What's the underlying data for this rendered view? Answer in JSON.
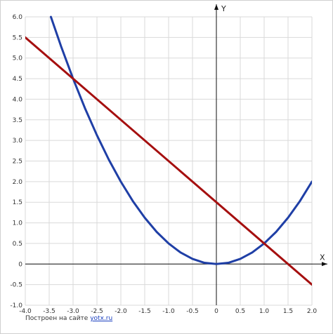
{
  "footer": {
    "text": "Построен на сайте",
    "link": "yotx.ru"
  },
  "chart_data": {
    "type": "line",
    "xlabel": "X",
    "ylabel": "Y",
    "xlim": [
      -4.0,
      2.0
    ],
    "ylim": [
      -1.0,
      6.0
    ],
    "grid": true,
    "x_ticks": [
      "-4.0",
      "-3.5",
      "-3.0",
      "-2.5",
      "-2.0",
      "-1.5",
      "-1.0",
      "-0.5",
      "0",
      "0.5",
      "1.0",
      "1.5",
      "2.0"
    ],
    "y_ticks": [
      "-1.0",
      "-0.5",
      "0",
      "0.5",
      "1.0",
      "1.5",
      "2.0",
      "2.5",
      "3.0",
      "3.5",
      "4.0",
      "4.5",
      "5.0",
      "5.5",
      "6.0"
    ],
    "series": [
      {
        "color": "#1f3fa6",
        "x": [
          -3.464,
          -3.25,
          -3.0,
          -2.75,
          -2.5,
          -2.25,
          -2.0,
          -1.75,
          -1.5,
          -1.25,
          -1.0,
          -0.75,
          -0.5,
          -0.25,
          0,
          0.25,
          0.5,
          0.75,
          1.0,
          1.25,
          1.5,
          1.75,
          2.0
        ],
        "y": [
          6.0,
          5.28,
          4.5,
          3.78,
          3.125,
          2.53,
          2.0,
          1.53,
          1.125,
          0.78,
          0.5,
          0.28,
          0.125,
          0.03,
          0,
          0.03,
          0.125,
          0.28,
          0.5,
          0.78,
          1.125,
          1.53,
          2.0
        ]
      },
      {
        "color": "#a50f0f",
        "x": [
          -4.0,
          2.0
        ],
        "y": [
          5.5,
          -0.5
        ]
      }
    ]
  }
}
